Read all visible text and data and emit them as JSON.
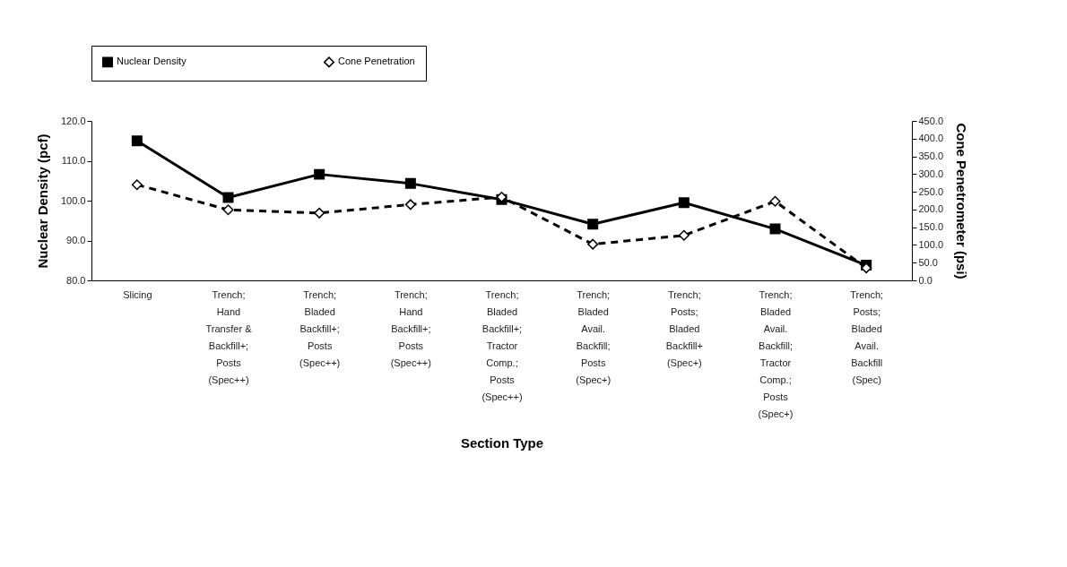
{
  "chart_data": {
    "type": "line",
    "xlabel": "Section Type",
    "ylabel": "Nuclear Density (pcf)",
    "y2label": "Cone Penetrometer (psi)",
    "categories": [
      "Slicing",
      "Trench;\nHand\nTransfer &\nBackfill+;\nPosts\n(Spec++)",
      "Trench;\nBladed\nBackfill+;\nPosts\n(Spec++)",
      "Trench;\nHand\nBackfill+;\nPosts\n(Spec++)",
      "Trench;\nBladed\nBackfill+;\nTractor\nComp.;\nPosts\n(Spec++)",
      "Trench;\nBladed\nAvail.\nBackfill;\nPosts\n(Spec+)",
      "Trench;\nPosts;\nBladed\nBackfill+\n(Spec+)",
      "Trench;\nBladed\nAvail.\nBackfill;\nTractor\nComp.;\nPosts\n(Spec+)",
      "Trench;\nPosts;\nBladed\nAvail.\nBackfill\n(Spec)"
    ],
    "series": [
      {
        "name": "Nuclear Density",
        "color": "#000000",
        "marker": "square",
        "line_style": "solid",
        "values": [
          115.0,
          100.8,
          106.6,
          104.3,
          100.3,
          94.1,
          99.5,
          92.9,
          83.8
        ]
      },
      {
        "name": "Cone Penetration",
        "color": "#000000",
        "marker": "diamond",
        "line_style": "dashed",
        "axis": "y2",
        "values": [
          270,
          199,
          190,
          214,
          235,
          102,
          127,
          223,
          35
        ]
      }
    ],
    "ylim": [
      80,
      120
    ],
    "yticks": [
      {
        "value": 80,
        "label": "80.0"
      },
      {
        "value": 90,
        "label": "90.0"
      },
      {
        "value": 100,
        "label": "100.0"
      },
      {
        "value": 110,
        "label": "110.0"
      },
      {
        "value": 120,
        "label": "120.0"
      }
    ],
    "y2lim": [
      0,
      450
    ],
    "y2ticks": [
      {
        "value": 0,
        "label": "0.0"
      },
      {
        "value": 50,
        "label": "50.0"
      },
      {
        "value": 100,
        "label": "100.0"
      },
      {
        "value": 150,
        "label": "150.0"
      },
      {
        "value": 200,
        "label": "200.0"
      },
      {
        "value": 250,
        "label": "250.0"
      },
      {
        "value": 300,
        "label": "300.0"
      },
      {
        "value": 350,
        "label": "350.0"
      },
      {
        "value": 400,
        "label": "400.0"
      },
      {
        "value": 450,
        "label": "450.0"
      }
    ],
    "grid": false,
    "legend": "top"
  }
}
